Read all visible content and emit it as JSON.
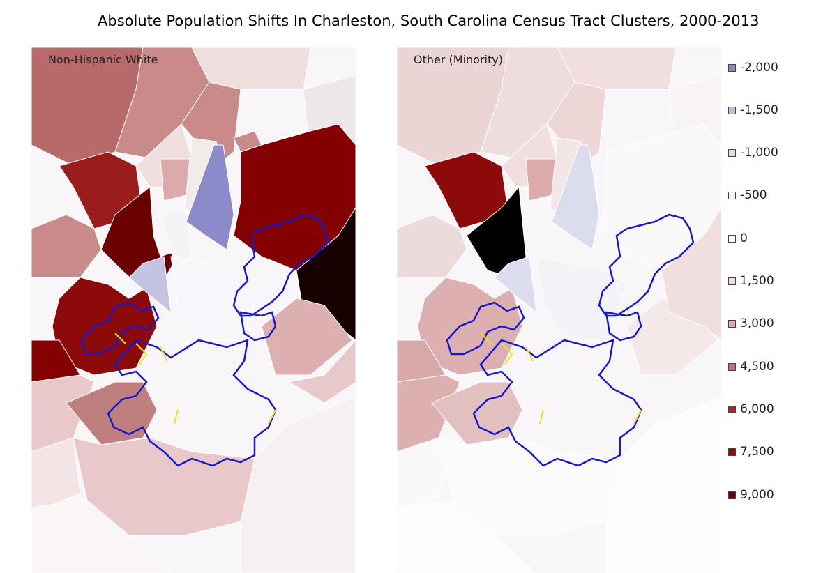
{
  "title": "Absolute Population Shifts In Charleston, South Carolina Census Tract Clusters, 2000-2013",
  "panels": [
    {
      "label": "Non-Hispanic White"
    },
    {
      "label": "Other (Minority)"
    }
  ],
  "legend": [
    {
      "label": "-2,000",
      "color": "#8b8bc9"
    },
    {
      "label": "-1,500",
      "color": "#bcbce0"
    },
    {
      "label": "-1,000",
      "color": "#dcdcef"
    },
    {
      "label": "-500",
      "color": "#f5f5fa"
    },
    {
      "label": "0",
      "color": "#ffffff"
    },
    {
      "label": "1,500",
      "color": "#f1dcdc"
    },
    {
      "label": "3,000",
      "color": "#dcaaaa"
    },
    {
      "label": "4,500",
      "color": "#c07070"
    },
    {
      "label": "6,000",
      "color": "#a02a2a"
    },
    {
      "label": "7,500",
      "color": "#8b0a0a"
    },
    {
      "label": "9,000",
      "color": "#6a0000"
    }
  ],
  "colors": {
    "cluster_outline": "#1818c8",
    "cluster_inner": "#f0e020",
    "tract_border": "#ffffff"
  }
}
